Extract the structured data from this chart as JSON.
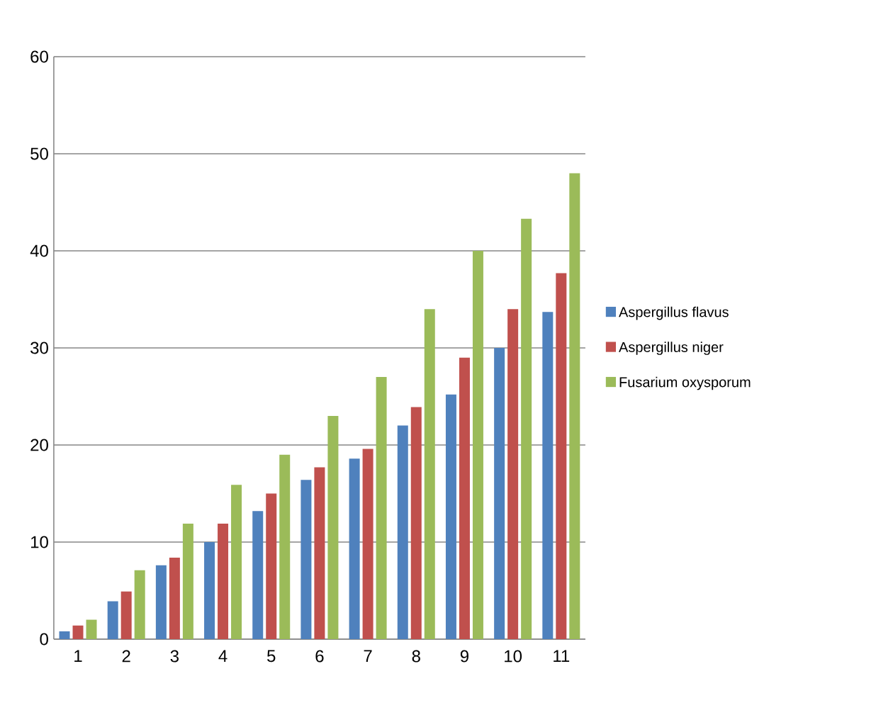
{
  "chart_data": {
    "type": "bar",
    "categories": [
      "1",
      "2",
      "3",
      "4",
      "5",
      "6",
      "7",
      "8",
      "9",
      "10",
      "11"
    ],
    "series": [
      {
        "name": "Aspergillus flavus",
        "color": "#4f81bd",
        "values": [
          0.8,
          3.9,
          7.6,
          10,
          13.2,
          16.4,
          18.6,
          22,
          25.2,
          30,
          33.7
        ]
      },
      {
        "name": "Aspergillus niger",
        "color": "#c0504d",
        "values": [
          1.4,
          4.9,
          8.4,
          11.9,
          15,
          17.7,
          19.6,
          23.9,
          29,
          34,
          37.7
        ]
      },
      {
        "name": "Fusarium oxysporum",
        "color": "#9bbb59",
        "values": [
          2,
          7.1,
          11.9,
          15.9,
          19,
          23,
          27,
          34,
          40,
          43.3,
          48
        ]
      }
    ],
    "ylim": [
      0,
      60
    ],
    "yticks": [
      0,
      10,
      20,
      30,
      40,
      50,
      60
    ],
    "grid": "y",
    "legend": "right"
  }
}
